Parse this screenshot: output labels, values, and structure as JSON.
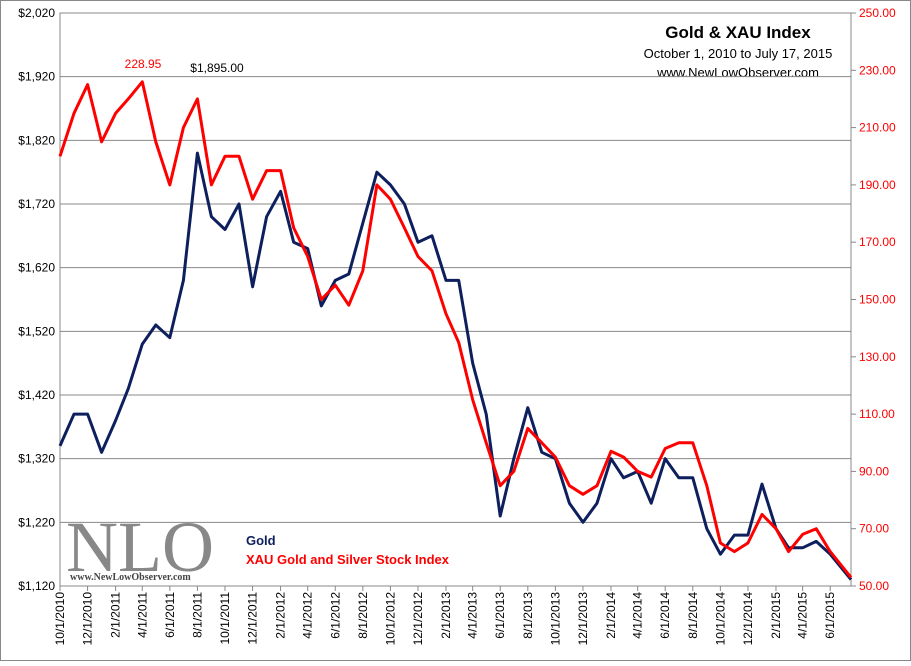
{
  "chart_data": {
    "type": "line",
    "title": "Gold & XAU Index",
    "subtitle": "October 1, 2010  to July 17, 2015",
    "source": "www.NewLowObserver.com",
    "logo": {
      "text": "NLO",
      "url": "www.NewLowObserver.com"
    },
    "annotations": [
      "228.95",
      "$1,895.00"
    ],
    "grid": true,
    "legend": "bottom-left",
    "x": [
      "10/1/2010",
      "11/1/2010",
      "12/1/2010",
      "1/1/2011",
      "2/1/2011",
      "3/1/2011",
      "4/1/2011",
      "5/1/2011",
      "6/1/2011",
      "7/1/2011",
      "8/1/2011",
      "9/1/2011",
      "10/1/2011",
      "11/1/2011",
      "12/1/2011",
      "1/1/2012",
      "2/1/2012",
      "3/1/2012",
      "4/1/2012",
      "5/1/2012",
      "6/1/2012",
      "7/1/2012",
      "8/1/2012",
      "9/1/2012",
      "10/1/2012",
      "11/1/2012",
      "12/1/2012",
      "1/1/2013",
      "2/1/2013",
      "3/1/2013",
      "4/1/2013",
      "5/1/2013",
      "6/1/2013",
      "7/1/2013",
      "8/1/2013",
      "9/1/2013",
      "10/1/2013",
      "11/1/2013",
      "12/1/2013",
      "1/1/2014",
      "2/1/2014",
      "3/1/2014",
      "4/1/2014",
      "5/1/2014",
      "6/1/2014",
      "7/1/2014",
      "8/1/2014",
      "9/1/2014",
      "10/1/2014",
      "11/1/2014",
      "12/1/2014",
      "1/1/2015",
      "2/1/2015",
      "3/1/2015",
      "4/1/2015",
      "5/1/2015",
      "6/1/2015",
      "7/17/2015"
    ],
    "xlim": [
      "10/1/2010",
      "7/17/2015"
    ],
    "xticks": [
      "10/1/2010",
      "12/1/2010",
      "2/1/2011",
      "4/1/2011",
      "6/1/2011",
      "8/1/2011",
      "10/1/2011",
      "12/1/2011",
      "2/1/2012",
      "4/1/2012",
      "6/1/2012",
      "8/1/2012",
      "10/1/2012",
      "12/1/2012",
      "2/1/2013",
      "4/1/2013",
      "6/1/2013",
      "8/1/2013",
      "10/1/2013",
      "12/1/2013",
      "2/1/2014",
      "4/1/2014",
      "6/1/2014",
      "8/1/2014",
      "10/1/2014",
      "12/1/2014",
      "2/1/2015",
      "4/1/2015",
      "6/1/2015"
    ],
    "ylim": [
      1120,
      2020
    ],
    "yticks": [
      {
        "value": 1120,
        "label": "$1,120"
      },
      {
        "value": 1220,
        "label": "$1,220"
      },
      {
        "value": 1320,
        "label": "$1,320"
      },
      {
        "value": 1420,
        "label": "$1,420"
      },
      {
        "value": 1520,
        "label": "$1,520"
      },
      {
        "value": 1620,
        "label": "$1,620"
      },
      {
        "value": 1720,
        "label": "$1,720"
      },
      {
        "value": 1820,
        "label": "$1,820"
      },
      {
        "value": 1920,
        "label": "$1,920"
      },
      {
        "value": 2020,
        "label": "$2,020"
      }
    ],
    "y2lim": [
      50,
      250
    ],
    "y2ticks": [
      {
        "value": 50,
        "label": "50.00"
      },
      {
        "value": 70,
        "label": "70.00"
      },
      {
        "value": 90,
        "label": "90.00"
      },
      {
        "value": 110,
        "label": "110.00"
      },
      {
        "value": 130,
        "label": "130.00"
      },
      {
        "value": 150,
        "label": "150.00"
      },
      {
        "value": 170,
        "label": "170.00"
      },
      {
        "value": 190,
        "label": "190.00"
      },
      {
        "value": 210,
        "label": "210.00"
      },
      {
        "value": 230,
        "label": "230.00"
      },
      {
        "value": 250,
        "label": "250.00"
      }
    ],
    "series": [
      {
        "name": "Gold",
        "color": "#0d1f5c",
        "values": [
          1340,
          1390,
          1390,
          1330,
          1380,
          1430,
          1500,
          1530,
          1510,
          1600,
          1800,
          1700,
          1680,
          1720,
          1590,
          1700,
          1740,
          1660,
          1650,
          1560,
          1600,
          1610,
          1690,
          1770,
          1750,
          1720,
          1660,
          1670,
          1600,
          1600,
          1470,
          1390,
          1230,
          1320,
          1400,
          1330,
          1320,
          1250,
          1220,
          1250,
          1320,
          1290,
          1300,
          1250,
          1320,
          1290,
          1290,
          1210,
          1170,
          1200,
          1200,
          1280,
          1210,
          1180,
          1180,
          1190,
          1170,
          1130
        ]
      },
      {
        "name": "XAU Gold and Silver Stock Index",
        "color": "#ff0000",
        "axis": "y2",
        "values": [
          200,
          215,
          225,
          205,
          215,
          220,
          226,
          205,
          190,
          210,
          220,
          190,
          200,
          200,
          185,
          195,
          195,
          175,
          165,
          150,
          155,
          148,
          160,
          190,
          185,
          175,
          165,
          160,
          145,
          135,
          115,
          100,
          85,
          90,
          105,
          100,
          95,
          85,
          82,
          85,
          97,
          95,
          90,
          88,
          98,
          100,
          100,
          85,
          65,
          62,
          65,
          75,
          70,
          62,
          68,
          70,
          62,
          53
        ]
      }
    ]
  }
}
